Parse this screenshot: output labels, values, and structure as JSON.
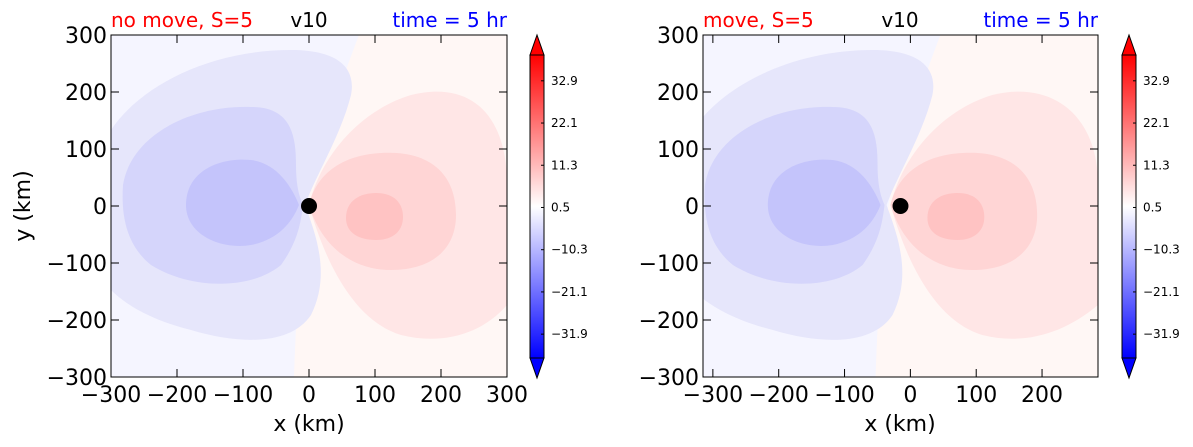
{
  "figure": {
    "variable": "v10",
    "time_label": "time = 5 hr"
  },
  "chart_data": [
    {
      "type": "contour",
      "title_left": "no move, S=5",
      "title_center": "v10",
      "title_right": "time = 5 hr",
      "xlabel": "x (km)",
      "ylabel": "y (km)",
      "xlim": [
        -300,
        300
      ],
      "ylim": [
        -300,
        300
      ],
      "xticks": [
        "−300",
        "−200",
        "−100",
        "0",
        "100",
        "200",
        "300"
      ],
      "xtick_values": [
        -300,
        -200,
        -100,
        0,
        100,
        200,
        300
      ],
      "yticks": [
        "300",
        "200",
        "100",
        "0",
        "−100",
        "−200",
        "−300"
      ],
      "ytick_values": [
        300,
        200,
        100,
        0,
        -100,
        -200,
        -300
      ],
      "marker": {
        "x": 0,
        "y": 0
      },
      "colorbar": {
        "ticks": [
          "32.9",
          "22.1",
          "11.3",
          "0.5",
          "−10.3",
          "−21.1",
          "−31.9"
        ],
        "tick_values": [
          32.9,
          22.1,
          11.3,
          0.5,
          -10.3,
          -21.1,
          -31.9
        ],
        "extend": "both",
        "cmap": "bwr"
      }
    },
    {
      "type": "contour",
      "title_left": "move, S=5",
      "title_center": "v10",
      "title_right": "time = 5 hr",
      "xlabel": "x (km)",
      "ylabel": "",
      "xlim": [
        -315,
        285
      ],
      "ylim": [
        -300,
        300
      ],
      "xticks": [
        "−300",
        "−200",
        "−100",
        "0",
        "100",
        "200"
      ],
      "xtick_values": [
        -300,
        -200,
        -100,
        0,
        100,
        200
      ],
      "yticks": [
        "300",
        "200",
        "100",
        "0",
        "−100",
        "−200",
        "−300"
      ],
      "ytick_values": [
        300,
        200,
        100,
        0,
        -100,
        -200,
        -300
      ],
      "marker": {
        "x": -15,
        "y": 0
      },
      "colorbar": {
        "ticks": [
          "32.9",
          "22.1",
          "11.3",
          "0.5",
          "−10.3",
          "−21.1",
          "−31.9"
        ],
        "tick_values": [
          32.9,
          22.1,
          11.3,
          0.5,
          -10.3,
          -21.1,
          -31.9
        ],
        "extend": "both",
        "cmap": "bwr"
      }
    }
  ],
  "colors": {
    "title_left": "#ff0000",
    "title_center": "#000000",
    "title_right": "#0000ff",
    "neg_outer": "#f5f5ff",
    "neg_1": "#e6e6fb",
    "neg_2": "#d5d5fb",
    "neg_3": "#c4c4fb",
    "pos_outer": "#fff7f5",
    "pos_1": "#ffe6e6",
    "pos_2": "#ffd5d5",
    "pos_3": "#ffc3c3"
  }
}
